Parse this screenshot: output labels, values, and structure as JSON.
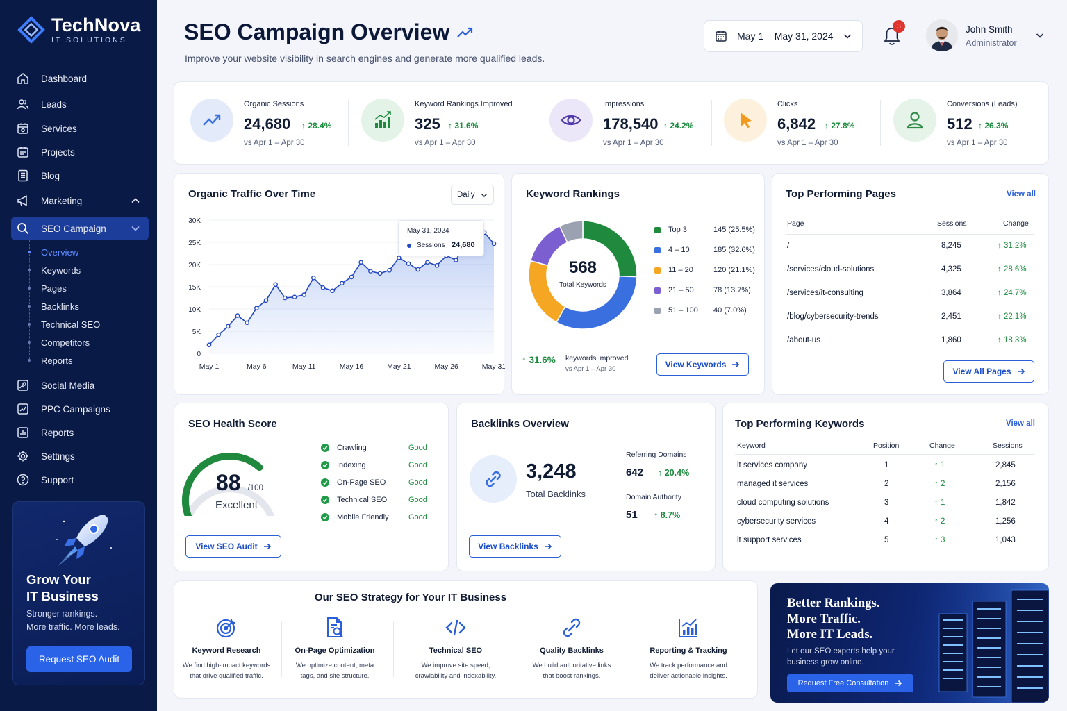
{
  "brand": {
    "name": "TechNova",
    "tagline": "IT SOLUTIONS"
  },
  "sidebar": {
    "items": [
      {
        "label": "Dashboard",
        "icon": "home-icon"
      },
      {
        "label": "Leads",
        "icon": "users-icon"
      },
      {
        "label": "Services",
        "icon": "services-icon"
      },
      {
        "label": "Projects",
        "icon": "folder-icon"
      },
      {
        "label": "Blog",
        "icon": "document-icon"
      },
      {
        "label": "Marketing",
        "icon": "megaphone-icon"
      },
      {
        "label": "SEO Campaign",
        "icon": "search-icon"
      },
      {
        "label": "Social Media",
        "icon": "social-icon"
      },
      {
        "label": "PPC Campaigns",
        "icon": "ppc-icon"
      },
      {
        "label": "Reports",
        "icon": "chart-icon"
      },
      {
        "label": "Settings",
        "icon": "gear-icon"
      },
      {
        "label": "Support",
        "icon": "help-icon"
      }
    ],
    "subitems": [
      "Overview",
      "Keywords",
      "Pages",
      "Backlinks",
      "Technical SEO",
      "Competitors",
      "Reports"
    ],
    "promo": {
      "title_1": "Grow Your",
      "title_2": "IT Business",
      "text_1": "Stronger rankings.",
      "text_2": "More traffic. More leads.",
      "button": "Request SEO Audit"
    }
  },
  "header": {
    "title": "SEO Campaign Overview",
    "subtitle": "Improve your website visibility in search engines and generate more qualified leads.",
    "date_range": "May 1 – May 31, 2024",
    "notifications": "3",
    "user_name": "John Smith",
    "user_role": "Administrator"
  },
  "kpis": [
    {
      "label": "Organic Sessions",
      "value": "24,680",
      "change": "28.4%",
      "compare": "vs Apr 1 – Apr 30",
      "color": "#3a6fe0",
      "bg": "#e3ebfb"
    },
    {
      "label": "Keyword Rankings Improved",
      "value": "325",
      "change": "31.6%",
      "compare": "vs Apr 1 – Apr 30",
      "color": "#1f8a3d",
      "bg": "#e3f3e7"
    },
    {
      "label": "Impressions",
      "value": "178,540",
      "change": "24.2%",
      "compare": "vs Apr 1 – Apr 30",
      "color": "#4e3aa8",
      "bg": "#ebe6f8"
    },
    {
      "label": "Clicks",
      "value": "6,842",
      "change": "27.8%",
      "compare": "vs Apr 1 – Apr 30",
      "color": "#f29a1e",
      "bg": "#fdf1de"
    },
    {
      "label": "Conversions (Leads)",
      "value": "512",
      "change": "26.3%",
      "compare": "vs Apr 1 – Apr 30",
      "color": "#2f8a47",
      "bg": "#e6f3e9"
    }
  ],
  "traffic": {
    "title": "Organic Traffic Over Time",
    "period": "Daily",
    "tooltip_date": "May 31, 2024",
    "tooltip_label": "Sessions",
    "tooltip_value": "24,680"
  },
  "chart_data": [
    {
      "type": "area",
      "title": "Organic Traffic Over Time",
      "x": [
        1,
        2,
        3,
        4,
        5,
        6,
        7,
        8,
        9,
        10,
        11,
        12,
        13,
        14,
        15,
        16,
        17,
        18,
        19,
        20,
        21,
        22,
        23,
        24,
        25,
        26,
        27,
        28,
        29,
        30,
        31
      ],
      "series": [
        {
          "name": "Sessions",
          "values": [
            1900,
            4200,
            6100,
            8500,
            6900,
            10200,
            11900,
            15500,
            12500,
            12700,
            13200,
            17000,
            14800,
            14100,
            15800,
            17200,
            20500,
            18500,
            18000,
            18700,
            21500,
            20200,
            18900,
            20500,
            19800,
            22000,
            21000,
            24800,
            26500,
            27200,
            24680
          ]
        }
      ],
      "xticks": [
        "May 1",
        "May 6",
        "May 11",
        "May 16",
        "May 21",
        "May 26",
        "May 31"
      ],
      "yticks": [
        "0",
        "5K",
        "10K",
        "15K",
        "20K",
        "25K",
        "30K"
      ],
      "ylim": [
        0,
        30000
      ],
      "grid": true
    },
    {
      "type": "pie",
      "title": "Keyword Rankings",
      "center_value": "568",
      "center_label": "Total Keywords",
      "slices": [
        {
          "label": "Top 3",
          "value": 145,
          "display": "145 (25.5%)",
          "color": "#1f8a3d"
        },
        {
          "label": "4 – 10",
          "value": 185,
          "display": "185 (32.6%)",
          "color": "#3a6fe0"
        },
        {
          "label": "11 – 20",
          "value": 120,
          "display": "120 (21.1%)",
          "color": "#f5a623"
        },
        {
          "label": "21 – 50",
          "value": 78,
          "display": "78 (13.7%)",
          "color": "#7b5fd0"
        },
        {
          "label": "51 – 100",
          "value": 40,
          "display": "40 (7.0%)",
          "color": "#9aa1b0"
        }
      ]
    }
  ],
  "keyword_rankings": {
    "title": "Keyword Rankings",
    "improved": "31.6%",
    "improved_label": "keywords improved",
    "improved_compare": "vs Apr 1 – Apr 30",
    "button": "View Keywords"
  },
  "top_pages": {
    "title": "Top Performing Pages",
    "view_all": "View all",
    "headers": [
      "Page",
      "Sessions",
      "Change"
    ],
    "rows": [
      {
        "page": "/",
        "sessions": "8,245",
        "change": "31.2%"
      },
      {
        "page": "/services/cloud-solutions",
        "sessions": "4,325",
        "change": "28.6%"
      },
      {
        "page": "/services/it-consulting",
        "sessions": "3,864",
        "change": "24.7%"
      },
      {
        "page": "/blog/cybersecurity-trends",
        "sessions": "2,451",
        "change": "22.1%"
      },
      {
        "page": "/about-us",
        "sessions": "1,860",
        "change": "18.3%"
      }
    ],
    "button": "View All Pages"
  },
  "health": {
    "title": "SEO Health Score",
    "score": "88",
    "max": "/100",
    "score_fraction": 0.88,
    "rating": "Excellent",
    "checks": [
      {
        "label": "Crawling",
        "status": "Good"
      },
      {
        "label": "Indexing",
        "status": "Good"
      },
      {
        "label": "On-Page SEO",
        "status": "Good"
      },
      {
        "label": "Technical SEO",
        "status": "Good"
      },
      {
        "label": "Mobile Friendly",
        "status": "Good"
      }
    ],
    "button": "View SEO Audit"
  },
  "backlinks": {
    "title": "Backlinks Overview",
    "total": "3,248",
    "total_label": "Total Backlinks",
    "ref_label": "Referring Domains",
    "ref_value": "642",
    "ref_change": "20.4%",
    "da_label": "Domain Authority",
    "da_value": "51",
    "da_change": "8.7%",
    "button": "View Backlinks"
  },
  "top_keywords": {
    "title": "Top Performing Keywords",
    "view_all": "View all",
    "headers": [
      "Keyword",
      "Position",
      "Change",
      "Sessions"
    ],
    "rows": [
      {
        "keyword": "it services company",
        "position": "1",
        "change": "1",
        "sessions": "2,845"
      },
      {
        "keyword": "managed it services",
        "position": "2",
        "change": "2",
        "sessions": "2,156"
      },
      {
        "keyword": "cloud computing solutions",
        "position": "3",
        "change": "1",
        "sessions": "1,842"
      },
      {
        "keyword": "cybersecurity services",
        "position": "4",
        "change": "2",
        "sessions": "1,256"
      },
      {
        "keyword": "it support services",
        "position": "5",
        "change": "3",
        "sessions": "1,043"
      }
    ]
  },
  "strategy": {
    "title": "Our SEO Strategy for Your IT Business",
    "items": [
      {
        "title": "Keyword Research",
        "desc_1": "We find high-impact keywords",
        "desc_2": "that drive qualified traffic."
      },
      {
        "title": "On-Page Optimization",
        "desc_1": "We optimize content, meta",
        "desc_2": "tags, and site structure."
      },
      {
        "title": "Technical SEO",
        "desc_1": "We improve site speed,",
        "desc_2": "crawlability and indexability."
      },
      {
        "title": "Quality Backlinks",
        "desc_1": "We build authoritative links",
        "desc_2": "that boost rankings."
      },
      {
        "title": "Reporting & Tracking",
        "desc_1": "We track performance and",
        "desc_2": "deliver actionable insights."
      }
    ]
  },
  "banner": {
    "line_1": "Better Rankings.",
    "line_2": "More Traffic.",
    "line_3": "More IT Leads.",
    "text_1": "Let our SEO experts help your",
    "text_2": "business grow online.",
    "button": "Request Free Consultation"
  }
}
